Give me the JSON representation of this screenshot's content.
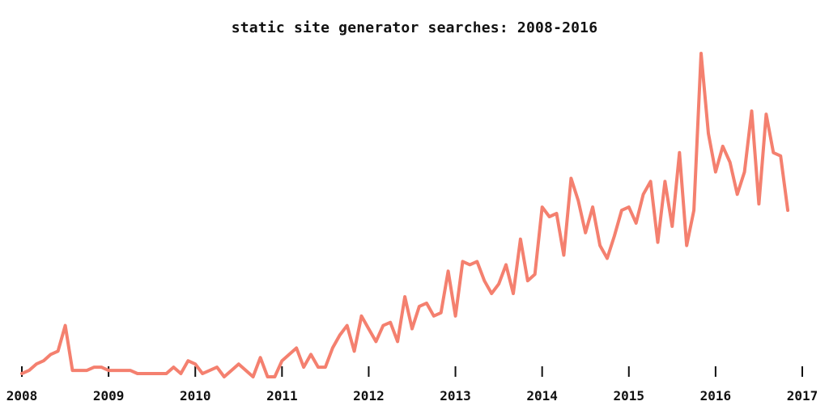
{
  "chart_data": {
    "type": "line",
    "title": "static site generator searches: 2008-2016",
    "xlabel": "",
    "ylabel": "",
    "xlim": [
      2008,
      2017
    ],
    "ylim": [
      0,
      100
    ],
    "x_ticks": [
      "2008",
      "2009",
      "2010",
      "2011",
      "2012",
      "2013",
      "2014",
      "2015",
      "2016",
      "2017"
    ],
    "grid": false,
    "legend": "none",
    "line_color": "#f4806f",
    "series": [
      {
        "name": "static site generator searches",
        "x": [
          2008.0,
          2008.0833,
          2008.1667,
          2008.25,
          2008.3333,
          2008.4167,
          2008.5,
          2008.5833,
          2008.6667,
          2008.75,
          2008.8333,
          2008.9167,
          2009.0,
          2009.0833,
          2009.1667,
          2009.25,
          2009.3333,
          2009.4167,
          2009.5,
          2009.5833,
          2009.6667,
          2009.75,
          2009.8333,
          2009.9167,
          2010.0,
          2010.0833,
          2010.1667,
          2010.25,
          2010.3333,
          2010.4167,
          2010.5,
          2010.5833,
          2010.6667,
          2010.75,
          2010.8333,
          2010.9167,
          2011.0,
          2011.0833,
          2011.1667,
          2011.25,
          2011.3333,
          2011.4167,
          2011.5,
          2011.5833,
          2011.6667,
          2011.75,
          2011.8333,
          2011.9167,
          2012.0,
          2012.0833,
          2012.1667,
          2012.25,
          2012.3333,
          2012.4167,
          2012.5,
          2012.5833,
          2012.6667,
          2012.75,
          2012.8333,
          2012.9167,
          2013.0,
          2013.0833,
          2013.1667,
          2013.25,
          2013.3333,
          2013.4167,
          2013.5,
          2013.5833,
          2013.6667,
          2013.75,
          2013.8333,
          2013.9167,
          2014.0,
          2014.0833,
          2014.1667,
          2014.25,
          2014.3333,
          2014.4167,
          2014.5,
          2014.5833,
          2014.6667,
          2014.75,
          2014.8333,
          2014.9167,
          2015.0,
          2015.0833,
          2015.1667,
          2015.25,
          2015.3333,
          2015.4167,
          2015.5,
          2015.5833,
          2015.6667,
          2015.75,
          2015.8333,
          2015.9167,
          2016.0,
          2016.0833,
          2016.1667,
          2016.25,
          2016.3333,
          2016.4167,
          2016.5,
          2016.5833,
          2016.6667,
          2016.75,
          2016.8333
        ],
        "values": [
          1,
          2,
          4,
          5,
          7,
          8,
          16,
          2,
          2,
          2,
          3,
          3,
          2,
          2,
          2,
          2,
          1,
          1,
          1,
          1,
          1,
          3,
          1,
          5,
          4,
          1,
          2,
          3,
          0,
          2,
          4,
          2,
          0,
          6,
          0,
          0,
          5,
          7,
          9,
          3,
          7,
          3,
          3,
          9,
          13,
          16,
          8,
          19,
          15,
          11,
          16,
          17,
          11,
          25,
          15,
          22,
          23,
          19,
          20,
          33,
          19,
          36,
          35,
          36,
          30,
          26,
          29,
          35,
          26,
          43,
          30,
          32,
          53,
          50,
          51,
          38,
          62,
          55,
          45,
          53,
          41,
          37,
          44,
          52,
          53,
          48,
          57,
          61,
          42,
          61,
          47,
          70,
          41,
          52,
          101,
          76,
          64,
          72,
          67,
          57,
          64,
          83,
          54,
          82,
          70,
          69,
          52
        ]
      }
    ]
  }
}
